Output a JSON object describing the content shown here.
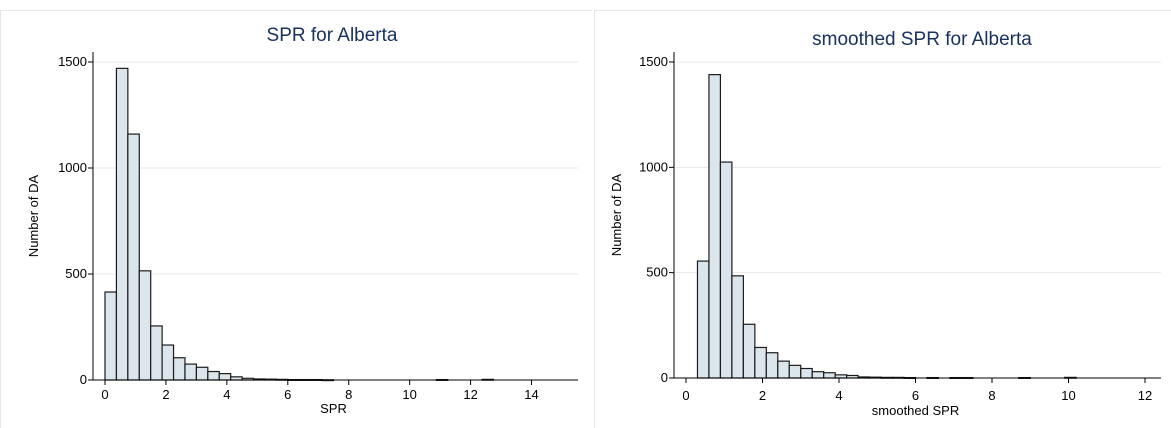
{
  "colors": {
    "bar_fill": "#dbe6ec",
    "bar_stroke": "#1c1c1c",
    "title": "#1a3260"
  },
  "chart_data": [
    {
      "type": "bar",
      "title": "SPR for Alberta",
      "xlabel": "SPR",
      "ylabel": "Number of DA",
      "xlim": [
        0,
        15
      ],
      "ylim": [
        0,
        1500
      ],
      "xticks": [
        0,
        2,
        4,
        6,
        8,
        10,
        12,
        14
      ],
      "yticks": [
        0,
        500,
        1000,
        1500
      ],
      "grid": true,
      "bin_width": 0.375,
      "bins": [
        {
          "x0": 0.0,
          "value": 415
        },
        {
          "x0": 0.375,
          "value": 1470
        },
        {
          "x0": 0.75,
          "value": 1160
        },
        {
          "x0": 1.125,
          "value": 515
        },
        {
          "x0": 1.5,
          "value": 255
        },
        {
          "x0": 1.875,
          "value": 165
        },
        {
          "x0": 2.25,
          "value": 105
        },
        {
          "x0": 2.625,
          "value": 75
        },
        {
          "x0": 3.0,
          "value": 60
        },
        {
          "x0": 3.375,
          "value": 40
        },
        {
          "x0": 3.75,
          "value": 30
        },
        {
          "x0": 4.125,
          "value": 15
        },
        {
          "x0": 4.5,
          "value": 8
        },
        {
          "x0": 4.875,
          "value": 5
        },
        {
          "x0": 5.25,
          "value": 4
        },
        {
          "x0": 5.625,
          "value": 3
        },
        {
          "x0": 6.0,
          "value": 2
        },
        {
          "x0": 6.375,
          "value": 2
        },
        {
          "x0": 6.75,
          "value": 2
        },
        {
          "x0": 7.125,
          "value": 1
        },
        {
          "x0": 10.875,
          "value": 2
        },
        {
          "x0": 12.375,
          "value": 3
        }
      ]
    },
    {
      "type": "bar",
      "title": "smoothed SPR for Alberta",
      "xlabel": "smoothed SPR",
      "ylabel": "Number of DA",
      "xlim": [
        0,
        12
      ],
      "ylim": [
        0,
        1500
      ],
      "xticks": [
        0,
        2,
        4,
        6,
        8,
        10,
        12
      ],
      "yticks": [
        0,
        500,
        1000,
        1500
      ],
      "grid": true,
      "bin_width": 0.3,
      "bins": [
        {
          "x0": 0.3,
          "value": 555
        },
        {
          "x0": 0.6,
          "value": 1440
        },
        {
          "x0": 0.9,
          "value": 1025
        },
        {
          "x0": 1.2,
          "value": 485
        },
        {
          "x0": 1.5,
          "value": 255
        },
        {
          "x0": 1.8,
          "value": 145
        },
        {
          "x0": 2.1,
          "value": 120
        },
        {
          "x0": 2.4,
          "value": 80
        },
        {
          "x0": 2.7,
          "value": 60
        },
        {
          "x0": 3.0,
          "value": 45
        },
        {
          "x0": 3.3,
          "value": 30
        },
        {
          "x0": 3.6,
          "value": 25
        },
        {
          "x0": 3.9,
          "value": 15
        },
        {
          "x0": 4.2,
          "value": 12
        },
        {
          "x0": 4.5,
          "value": 5
        },
        {
          "x0": 4.8,
          "value": 4
        },
        {
          "x0": 5.1,
          "value": 3
        },
        {
          "x0": 5.4,
          "value": 3
        },
        {
          "x0": 5.7,
          "value": 2
        },
        {
          "x0": 6.3,
          "value": 2
        },
        {
          "x0": 6.9,
          "value": 2
        },
        {
          "x0": 7.2,
          "value": 2
        },
        {
          "x0": 8.7,
          "value": 2
        },
        {
          "x0": 9.9,
          "value": 3
        }
      ]
    }
  ]
}
